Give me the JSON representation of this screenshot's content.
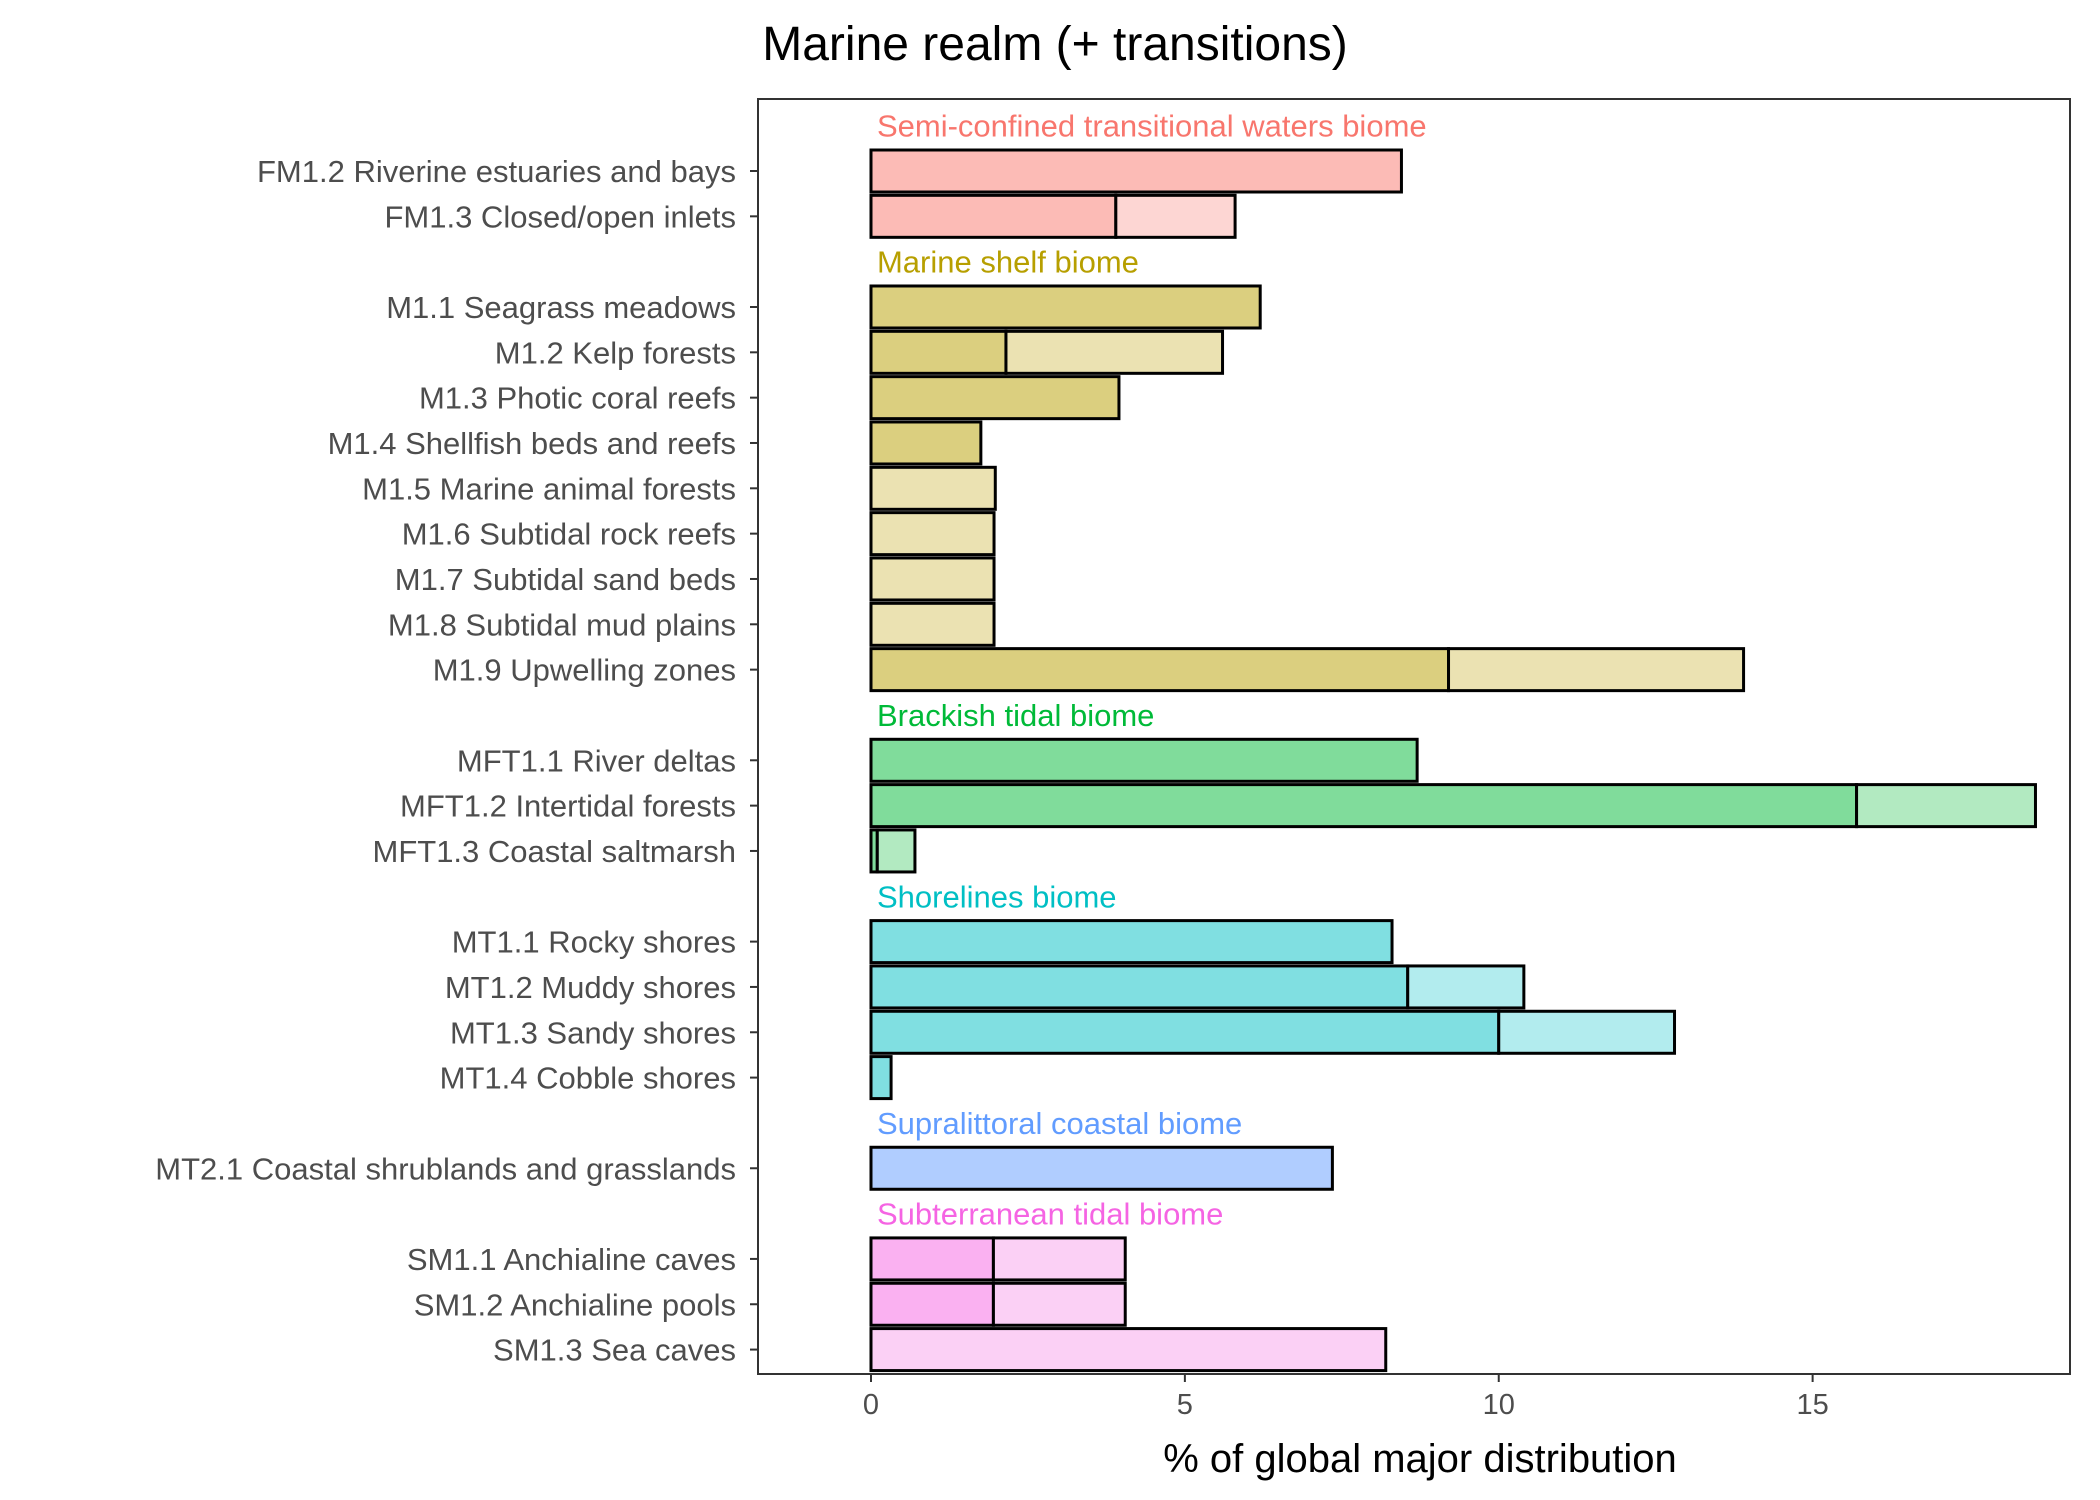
{
  "chart_data": {
    "type": "bar",
    "orientation": "horizontal",
    "stacked": true,
    "title": "Marine realm (+ transitions)",
    "xlabel": "% of global major distribution",
    "ylabel": "",
    "xlim": [
      -1.8,
      19.1
    ],
    "xticks": [
      0,
      5,
      10,
      15
    ],
    "grid": false,
    "legend": "none",
    "series": [
      {
        "name": "",
        "role": "major"
      },
      {
        "name": "",
        "role": "minor",
        "lighter": true
      }
    ],
    "groups": [
      {
        "label": "Semi-confined transitional waters biome",
        "color": "#f8766d",
        "fill_major": "#fcbbb6",
        "fill_minor": "#fdd6d3",
        "categories": [
          {
            "label": "FM1.2 Riverine estuaries and bays",
            "major": 8.45,
            "minor": 0
          },
          {
            "label": "FM1.3 Closed/open inlets",
            "major": 3.9,
            "minor": 1.9
          }
        ]
      },
      {
        "label": "Marine shelf biome",
        "color": "#b79f00",
        "fill_major": "#dbcf7f",
        "fill_minor": "#ebe2b2",
        "categories": [
          {
            "label": "M1.1 Seagrass meadows",
            "major": 6.2,
            "minor": 0
          },
          {
            "label": "M1.2 Kelp forests",
            "major": 2.15,
            "minor": 3.45
          },
          {
            "label": "M1.3 Photic coral reefs",
            "major": 3.95,
            "minor": 0
          },
          {
            "label": "M1.4 Shellfish beds and reefs",
            "major": 1.75,
            "minor": 0
          },
          {
            "label": "M1.5 Marine animal forests",
            "major": 0,
            "minor": 1.98
          },
          {
            "label": "M1.6 Subtidal rock reefs",
            "major": 0,
            "minor": 1.96
          },
          {
            "label": "M1.7 Subtidal sand beds",
            "major": 0,
            "minor": 1.96
          },
          {
            "label": "M1.8 Subtidal mud plains",
            "major": 0,
            "minor": 1.96
          },
          {
            "label": "M1.9 Upwelling zones",
            "major": 9.2,
            "minor": 4.7
          }
        ]
      },
      {
        "label": "Brackish tidal biome",
        "color": "#00ba38",
        "fill_major": "#80dc9b",
        "fill_minor": "#b2eac1",
        "categories": [
          {
            "label": "MFT1.1 River deltas",
            "major": 8.7,
            "minor": 0
          },
          {
            "label": "MFT1.2 Intertidal forests",
            "major": 15.7,
            "minor": 2.85
          },
          {
            "label": "MFT1.3 Coastal saltmarsh",
            "major": 0.1,
            "minor": 0.6
          }
        ]
      },
      {
        "label": "Shorelines biome",
        "color": "#00bfc4",
        "fill_major": "#80dfe1",
        "fill_minor": "#b2ecee",
        "categories": [
          {
            "label": "MT1.1 Rocky shores",
            "major": 8.3,
            "minor": 0
          },
          {
            "label": "MT1.2 Muddy shores",
            "major": 8.55,
            "minor": 1.85
          },
          {
            "label": "MT1.3 Sandy shores",
            "major": 10.0,
            "minor": 2.8
          },
          {
            "label": "MT1.4 Cobble shores",
            "major": 0.32,
            "minor": 0
          }
        ]
      },
      {
        "label": "Supralittoral coastal biome",
        "color": "#619cff",
        "fill_major": "#b0cdff",
        "fill_minor": "#d0e1ff",
        "categories": [
          {
            "label": "MT2.1 Coastal shrublands and grasslands",
            "major": 7.35,
            "minor": 0
          }
        ]
      },
      {
        "label": "Subterranean tidal biome",
        "color": "#f564e3",
        "fill_major": "#fab1f1",
        "fill_minor": "#fbd0f5",
        "categories": [
          {
            "label": "SM1.1 Anchialine caves",
            "major": 1.95,
            "minor": 2.1
          },
          {
            "label": "SM1.2 Anchialine pools",
            "major": 1.95,
            "minor": 2.1
          },
          {
            "label": "SM1.3 Sea caves",
            "major": 0,
            "minor": 8.2
          }
        ]
      }
    ]
  }
}
